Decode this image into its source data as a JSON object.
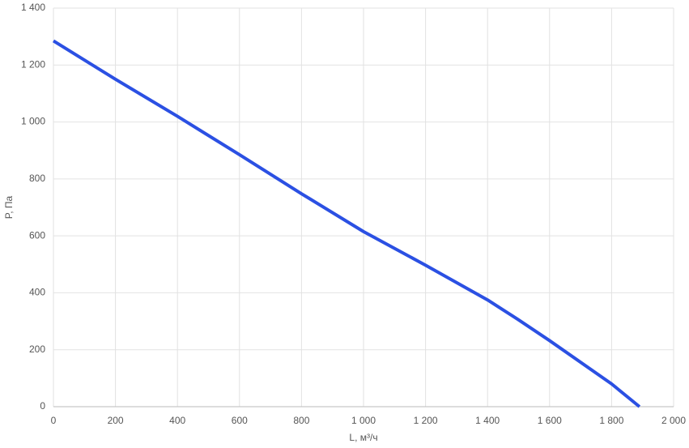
{
  "chart_data": {
    "type": "line",
    "x_label": "L, м³/ч",
    "y_label": "P, Па",
    "x": [
      0,
      200,
      400,
      600,
      800,
      1000,
      1200,
      1400,
      1500,
      1600,
      1800,
      1890
    ],
    "series": [
      {
        "color": "#2b50e3",
        "values": [
          1285,
          1150,
          1020,
          885,
          748,
          615,
          497,
          375,
          305,
          232,
          80,
          0
        ]
      }
    ],
    "xlim": [
      0,
      2000
    ],
    "xticks": [
      0,
      200,
      400,
      600,
      800,
      {
        "value": 1000,
        "label": "1 000"
      },
      {
        "value": 1200,
        "label": "1 200"
      },
      {
        "value": 1400,
        "label": "1 400"
      },
      {
        "value": 1600,
        "label": "1 600"
      },
      {
        "value": 1800,
        "label": "1 800"
      },
      {
        "value": 2000,
        "label": "2 000"
      }
    ],
    "ylim": [
      0,
      1400
    ],
    "yticks": [
      0,
      200,
      400,
      600,
      800,
      {
        "value": 1000,
        "label": "1 000"
      },
      {
        "value": 1200,
        "label": "1 200"
      },
      {
        "value": 1400,
        "label": "1 400"
      }
    ],
    "grid": true
  }
}
